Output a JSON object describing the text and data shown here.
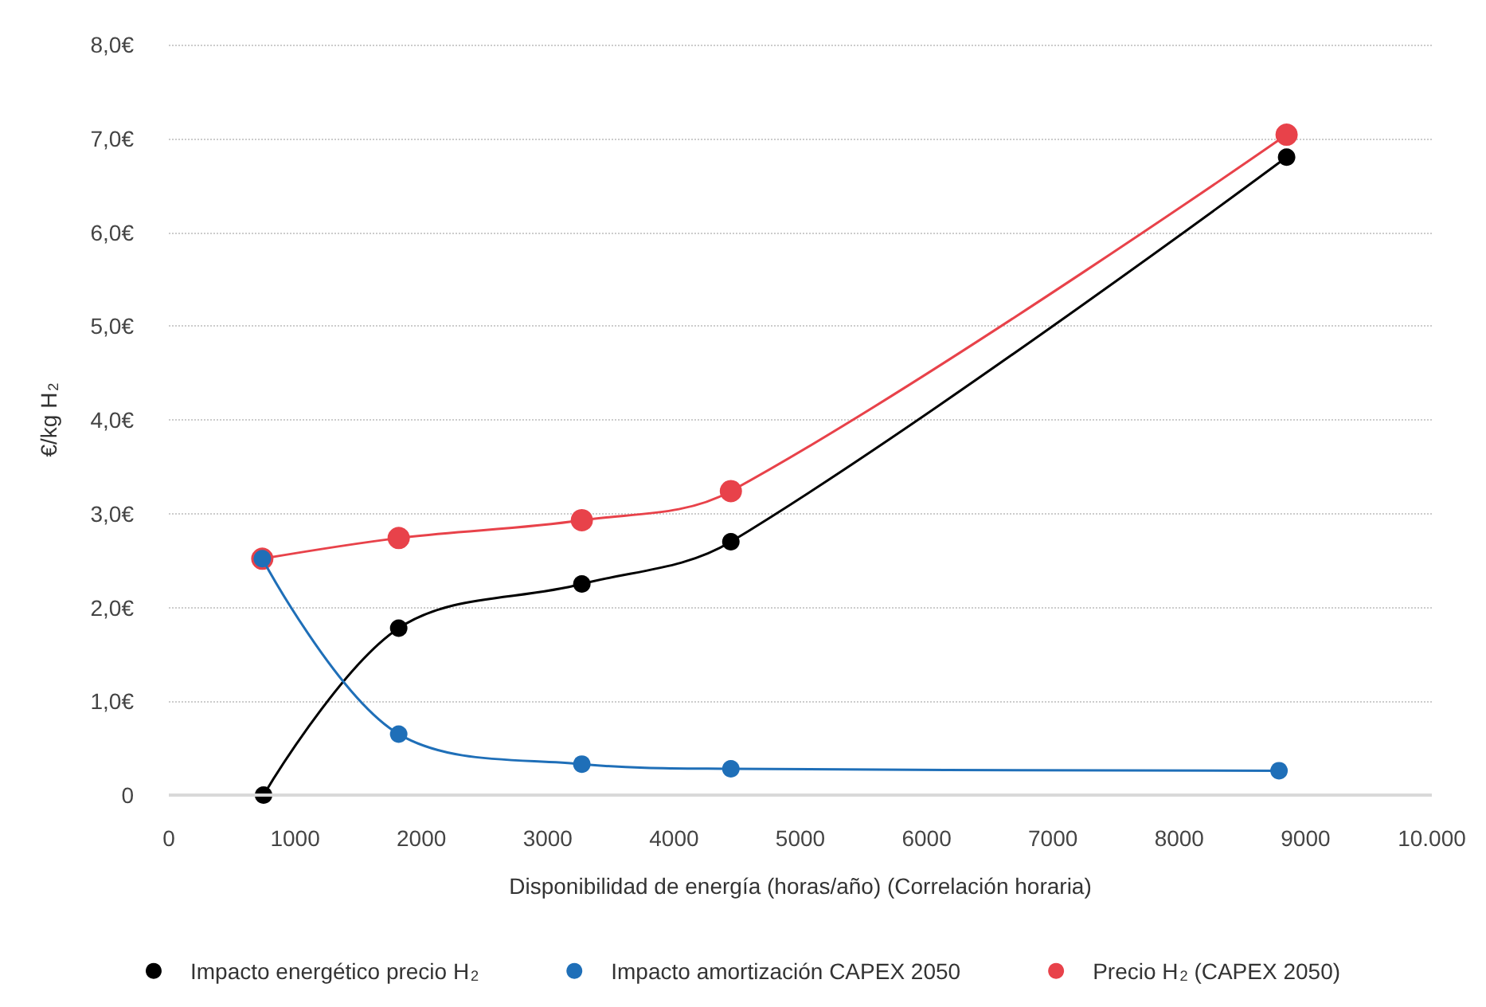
{
  "chart_data": {
    "type": "line",
    "xlabel": "Disponibilidad de energía (horas/año) (Correlación horaria)",
    "ylabel": "€/kg H$_{2}$",
    "xlim": [
      0,
      10000
    ],
    "xticks": [
      0,
      1000,
      2000,
      3000,
      4000,
      5000,
      6000,
      7000,
      8000,
      9000,
      {
        "value": 10000,
        "label": "10.000"
      }
    ],
    "ylim": [
      0,
      8
    ],
    "yticks": [
      0,
      {
        "value": 1,
        "label": "1,0€"
      },
      {
        "value": 2,
        "label": "2,0€"
      },
      {
        "value": 3,
        "label": "3,0€"
      },
      {
        "value": 4,
        "label": "4,0€"
      },
      {
        "value": 5,
        "label": "5,0€"
      },
      {
        "value": 6,
        "label": "6,0€"
      },
      {
        "value": 7,
        "label": "7,0€"
      },
      {
        "value": 8,
        "label": "8,0€"
      }
    ],
    "grid": "y",
    "legend": "bottom",
    "marker": "circle",
    "line_style": "solid",
    "series": [
      {
        "name": "Impacto energético precio H$_{2}$",
        "color": "#000000",
        "x": [
          750,
          1820,
          3270,
          4450,
          8850
        ],
        "values": [
          0,
          1.78,
          2.25,
          2.7,
          6.8
        ]
      },
      {
        "name": "Impacto amortización CAPEX 2050",
        "color": "#1f6fb8",
        "x": [
          740,
          1820,
          3270,
          4450,
          8790
        ],
        "values": [
          2.52,
          0.65,
          0.33,
          0.28,
          0.26
        ]
      },
      {
        "name": "Precio H$_{2}$ (CAPEX 2050)",
        "color": "#e8424a",
        "x": [
          740,
          1820,
          3270,
          4450,
          8850
        ],
        "values": [
          2.52,
          2.74,
          2.93,
          3.24,
          7.04
        ]
      }
    ]
  }
}
